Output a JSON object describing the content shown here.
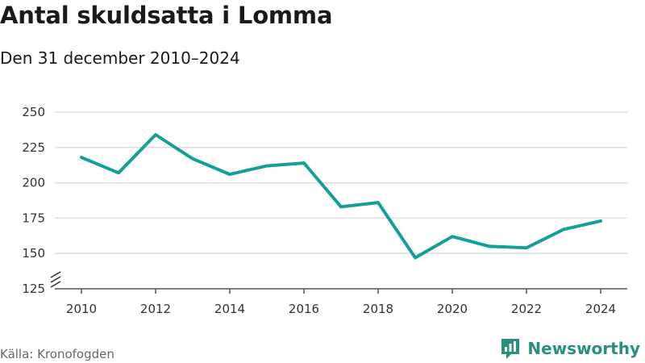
{
  "header": {
    "title": "Antal skuldsatta i Lomma",
    "subtitle": "Den 31 december 2010–2024"
  },
  "footer": {
    "source": "Källa: Kronofogden",
    "brand": "Newsworthy"
  },
  "colors": {
    "line": "#14a098",
    "grid": "#dddddd",
    "brand": "#2a8f7f"
  },
  "icons": {
    "axis_break": "axis-break-icon",
    "brand_logo": "newsworthy-logo-icon"
  },
  "chart_data": {
    "type": "line",
    "title": "Antal skuldsatta i Lomma",
    "subtitle": "Den 31 december 2010–2024",
    "xlabel": "",
    "ylabel": "",
    "x": [
      2010,
      2011,
      2012,
      2013,
      2014,
      2015,
      2016,
      2017,
      2018,
      2019,
      2020,
      2021,
      2022,
      2023,
      2024
    ],
    "series": [
      {
        "values": [
          218,
          207,
          234,
          217,
          206,
          212,
          214,
          183,
          186,
          147,
          162,
          155,
          154,
          167,
          173
        ]
      }
    ],
    "x_ticks": [
      2010,
      2012,
      2014,
      2016,
      2018,
      2020,
      2022,
      2024
    ],
    "y_ticks": [
      125,
      150,
      175,
      200,
      225,
      250
    ],
    "xlim": [
      2010,
      2024
    ],
    "ylim": [
      125,
      250
    ],
    "y_axis_break": true,
    "grid": true,
    "legend": "none"
  }
}
